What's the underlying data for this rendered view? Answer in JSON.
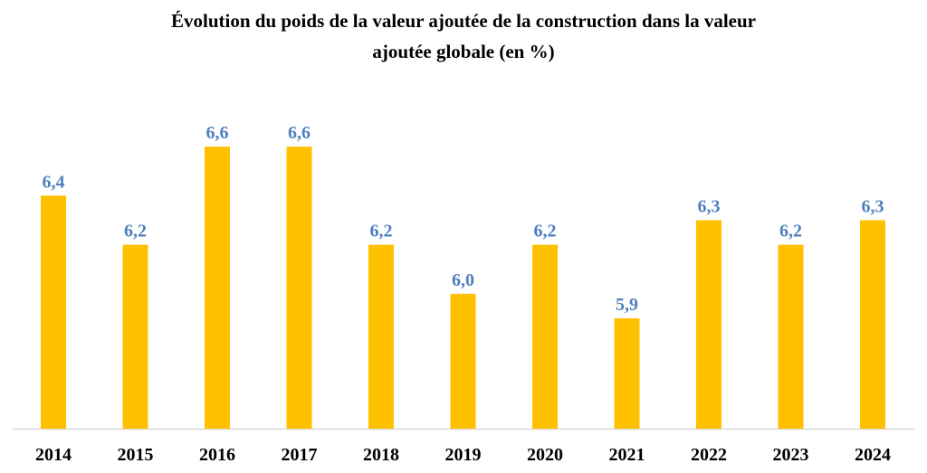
{
  "chart_data": {
    "type": "bar",
    "title_lines": [
      "Évolution du poids de la valeur ajoutée de la construction dans la valeur",
      "ajoutée globale (en %)"
    ],
    "categories": [
      "2014",
      "2015",
      "2016",
      "2017",
      "2018",
      "2019",
      "2020",
      "2021",
      "2022",
      "2023",
      "2024"
    ],
    "values": [
      6.4,
      6.2,
      6.6,
      6.6,
      6.2,
      6.0,
      6.2,
      5.9,
      6.3,
      6.2,
      6.3
    ],
    "data_labels": [
      "6,4",
      "6,2",
      "6,6",
      "6,6",
      "6,2",
      "6,0",
      "6,2",
      "5,9",
      "6,3",
      "6,2",
      "6,3"
    ],
    "xlabel": "",
    "ylabel": "",
    "ylim": [
      5.45,
      6.7
    ],
    "grid": false,
    "legend": "none",
    "colors": {
      "bar": "#FFC000",
      "data_label": "#4F81BD",
      "axis": "#D9D9D9"
    }
  }
}
